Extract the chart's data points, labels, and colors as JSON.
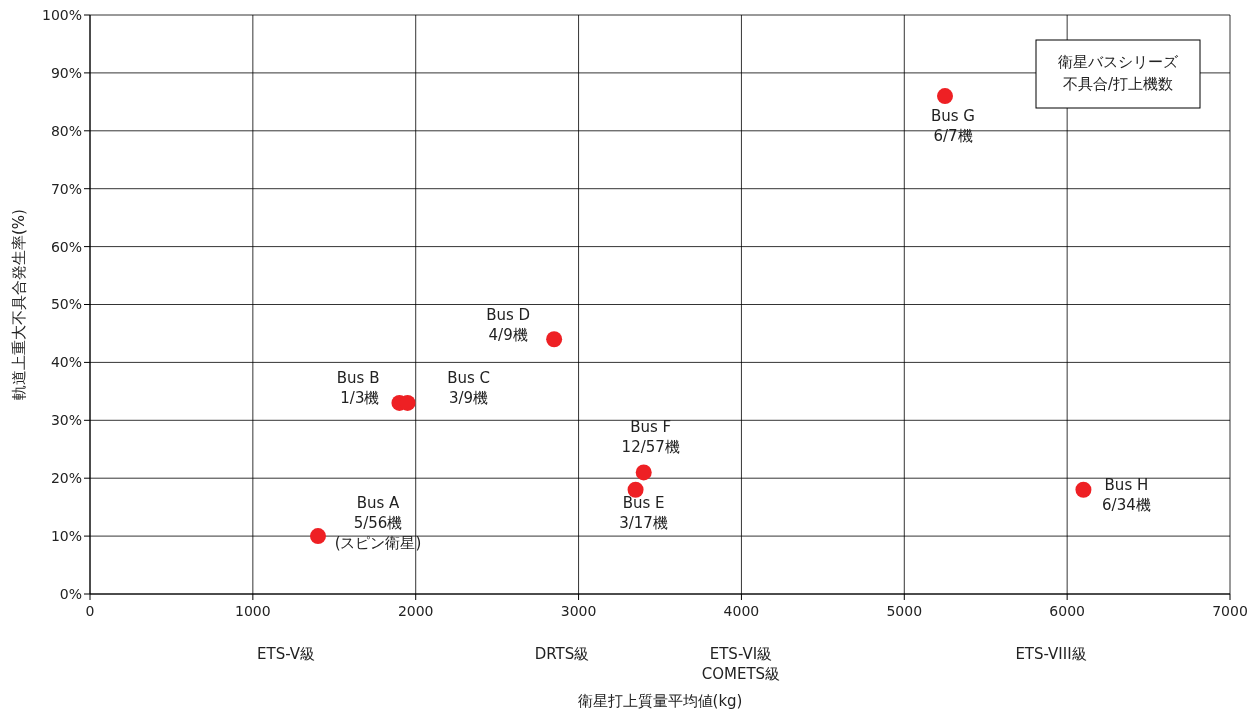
{
  "chart_data": {
    "type": "scatter",
    "xlabel": "衛星打上質量平均値(kg)",
    "ylabel": "軌道上重大不具合発生率(%)",
    "x": [
      1400,
      1900,
      1950,
      2850,
      3350,
      3400,
      5250,
      6100
    ],
    "series": [
      {
        "color": "#ee2024",
        "values": [
          10,
          33,
          33,
          44,
          18,
          21,
          86,
          18
        ]
      }
    ],
    "xlim": [
      0,
      7000
    ],
    "xticks": [
      0,
      1000,
      2000,
      3000,
      4000,
      5000,
      6000,
      7000
    ],
    "ylim": [
      0,
      100
    ],
    "yticks": [
      {
        "value": 0,
        "label": "0%"
      },
      {
        "value": 10,
        "label": "10%"
      },
      {
        "value": 20,
        "label": "20%"
      },
      {
        "value": 30,
        "label": "30%"
      },
      {
        "value": 40,
        "label": "40%"
      },
      {
        "value": 50,
        "label": "50%"
      },
      {
        "value": 60,
        "label": "60%"
      },
      {
        "value": 70,
        "label": "70%"
      },
      {
        "value": 80,
        "label": "80%"
      },
      {
        "value": 90,
        "label": "90%"
      },
      {
        "value": 100,
        "label": "100%"
      }
    ],
    "grid": true,
    "legend": false,
    "marker": "circle",
    "annotations": [
      {
        "text": "Bus A\n5/56機\n(スピン衛星)",
        "x": 1400,
        "y": 10
      },
      {
        "text": "Bus B\n1/3機",
        "x": 1900,
        "y": 33
      },
      {
        "text": "Bus C\n3/9機",
        "x": 1950,
        "y": 33
      },
      {
        "text": "Bus D\n4/9機",
        "x": 2850,
        "y": 44
      },
      {
        "text": "Bus E\n3/17機",
        "x": 3350,
        "y": 18
      },
      {
        "text": "Bus F\n12/57機",
        "x": 3400,
        "y": 21
      },
      {
        "text": "Bus G\n6/7機",
        "x": 5250,
        "y": 86
      },
      {
        "text": "Bus H\n6/34機",
        "x": 6100,
        "y": 18
      },
      "ETS-V級",
      "DRTS級",
      "ETS-VI級\nCOMETS級",
      "ETS-VIII級",
      "衛星バスシリーズ",
      "不具合/打上機数"
    ]
  }
}
